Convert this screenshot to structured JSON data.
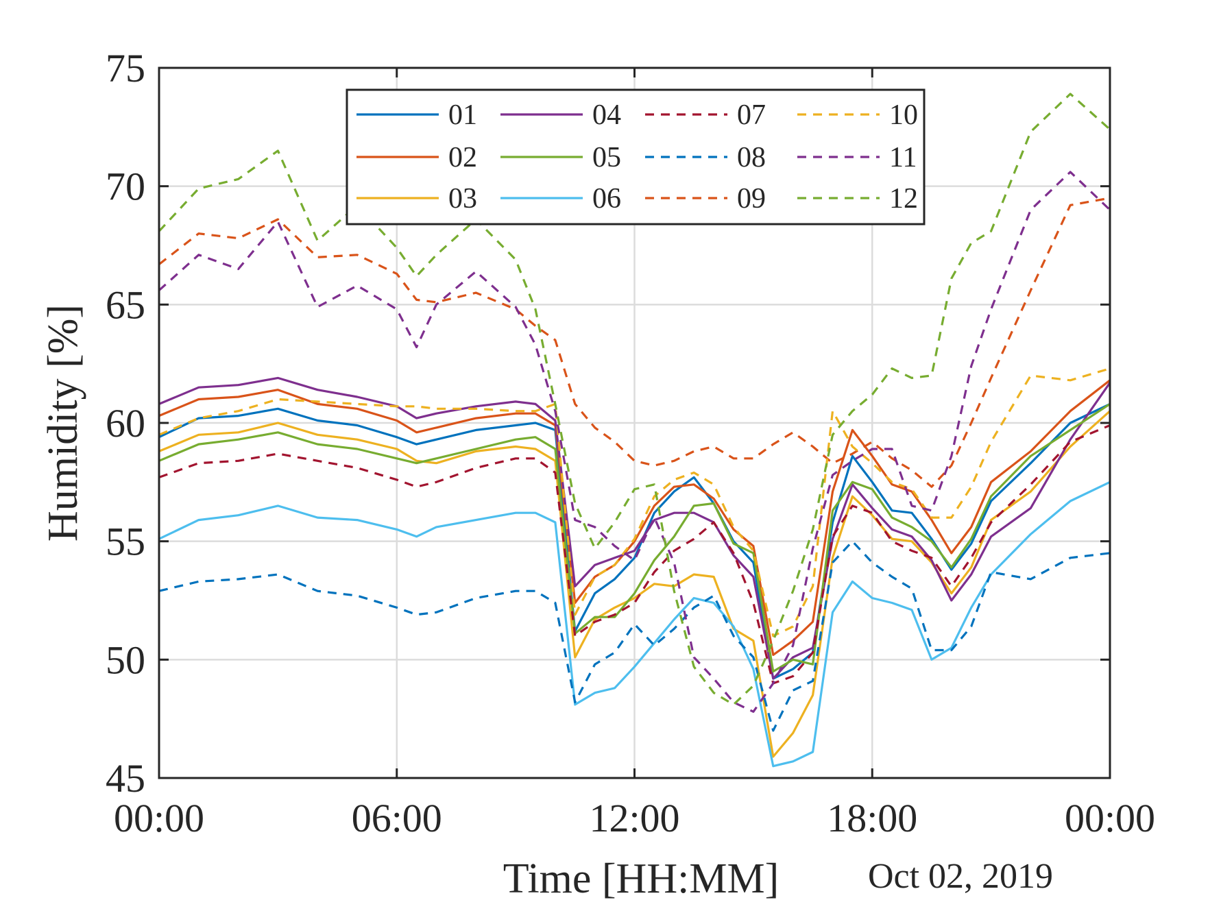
{
  "chart_data": {
    "type": "line",
    "xlabel": "Time [HH:MM]",
    "date_label": "Oct 02, 2019",
    "ylabel": "Humidity [%]",
    "xlim": [
      0,
      24
    ],
    "ylim": [
      45,
      75
    ],
    "xticks": [
      0,
      6,
      12,
      18,
      24
    ],
    "xtick_labels": [
      "00:00",
      "06:00",
      "12:00",
      "18:00",
      "00:00"
    ],
    "yticks": [
      45,
      50,
      55,
      60,
      65,
      70,
      75
    ],
    "ytick_labels": [
      "45",
      "50",
      "55",
      "60",
      "65",
      "70",
      "75"
    ],
    "grid": true,
    "legend_position": "top",
    "x_points": [
      0,
      1,
      2,
      3,
      4,
      5,
      6,
      6.5,
      7,
      8,
      9,
      9.5,
      10,
      10.5,
      11,
      11.5,
      12,
      12.5,
      13,
      13.5,
      14,
      14.5,
      15,
      15.5,
      16,
      16.5,
      17,
      17.5,
      18,
      18.5,
      19,
      19.5,
      20,
      20.5,
      21,
      22,
      23,
      24
    ],
    "series": [
      {
        "name": "01",
        "color": "#0072BD",
        "dash": false,
        "values": [
          59.4,
          60.2,
          60.3,
          60.6,
          60.1,
          59.9,
          59.4,
          59.1,
          59.3,
          59.7,
          59.9,
          60.0,
          59.7,
          51.2,
          52.8,
          53.4,
          54.3,
          56.2,
          57.1,
          57.7,
          56.6,
          55.0,
          54.1,
          49.2,
          49.6,
          50.3,
          55.8,
          58.6,
          57.5,
          56.3,
          56.2,
          55.1,
          53.8,
          54.9,
          56.7,
          58.3,
          60.0,
          60.8
        ]
      },
      {
        "name": "02",
        "color": "#D95319",
        "dash": false,
        "values": [
          60.3,
          61.0,
          61.1,
          61.4,
          60.8,
          60.6,
          60.1,
          59.6,
          59.8,
          60.2,
          60.4,
          60.4,
          59.9,
          52.4,
          53.5,
          54.0,
          55.0,
          56.5,
          57.3,
          57.4,
          56.8,
          55.5,
          54.8,
          50.2,
          50.8,
          51.6,
          57.1,
          59.7,
          58.6,
          57.4,
          57.1,
          55.9,
          54.5,
          55.6,
          57.5,
          58.8,
          60.5,
          61.8
        ]
      },
      {
        "name": "03",
        "color": "#EDB120",
        "dash": false,
        "values": [
          58.8,
          59.5,
          59.6,
          60.0,
          59.5,
          59.3,
          58.9,
          58.4,
          58.3,
          58.8,
          59.0,
          58.9,
          58.4,
          50.1,
          51.7,
          52.2,
          52.6,
          53.2,
          53.1,
          53.6,
          53.5,
          51.3,
          50.8,
          45.9,
          46.9,
          48.5,
          54.3,
          56.9,
          56.1,
          55.1,
          55.0,
          54.1,
          52.8,
          53.9,
          55.9,
          57.1,
          59.0,
          60.5
        ]
      },
      {
        "name": "04",
        "color": "#7E2F8E",
        "dash": false,
        "values": [
          60.8,
          61.5,
          61.6,
          61.9,
          61.4,
          61.1,
          60.7,
          60.2,
          60.4,
          60.7,
          60.9,
          60.8,
          60.1,
          53.1,
          54.0,
          54.3,
          54.6,
          55.9,
          56.2,
          56.2,
          55.8,
          54.4,
          53.5,
          49.2,
          50.1,
          50.5,
          55.1,
          57.4,
          56.4,
          55.5,
          55.2,
          54.2,
          52.5,
          53.6,
          55.2,
          56.4,
          59.3,
          61.7
        ]
      },
      {
        "name": "05",
        "color": "#77AC30",
        "dash": false,
        "values": [
          58.4,
          59.1,
          59.3,
          59.6,
          59.1,
          58.9,
          58.5,
          58.3,
          58.5,
          58.9,
          59.3,
          59.4,
          58.9,
          51.1,
          51.8,
          51.8,
          52.8,
          54.2,
          55.2,
          56.5,
          56.6,
          54.9,
          54.5,
          49.5,
          50.0,
          49.8,
          56.3,
          57.5,
          57.2,
          56.0,
          55.6,
          55.0,
          53.9,
          55.1,
          56.9,
          58.6,
          59.7,
          60.8
        ]
      },
      {
        "name": "06",
        "color": "#4DBEEE",
        "dash": false,
        "values": [
          55.1,
          55.9,
          56.1,
          56.5,
          56.0,
          55.9,
          55.5,
          55.2,
          55.6,
          55.9,
          56.2,
          56.2,
          55.8,
          48.1,
          48.6,
          48.8,
          49.7,
          50.7,
          51.7,
          52.6,
          52.4,
          51.4,
          49.6,
          45.5,
          45.7,
          46.1,
          52.0,
          53.3,
          52.6,
          52.4,
          52.1,
          50.0,
          50.5,
          52.2,
          53.6,
          55.3,
          56.7,
          57.5
        ]
      },
      {
        "name": "07",
        "color": "#A2142F",
        "dash": true,
        "values": [
          57.7,
          58.3,
          58.4,
          58.7,
          58.4,
          58.1,
          57.6,
          57.3,
          57.5,
          58.1,
          58.5,
          58.5,
          57.9,
          51.0,
          51.6,
          51.9,
          52.4,
          53.7,
          54.6,
          55.1,
          55.8,
          54.5,
          52.4,
          49.0,
          49.3,
          50.3,
          55.2,
          56.5,
          56.2,
          55.0,
          54.6,
          54.3,
          53.1,
          54.3,
          55.8,
          57.4,
          59.2,
          59.9
        ]
      },
      {
        "name": "08",
        "color": "#0072BD",
        "dash": true,
        "values": [
          52.9,
          53.3,
          53.4,
          53.6,
          52.9,
          52.7,
          52.2,
          51.9,
          52.0,
          52.6,
          52.9,
          52.9,
          52.4,
          48.2,
          49.8,
          50.3,
          51.5,
          50.6,
          51.3,
          52.2,
          52.7,
          51.0,
          50.1,
          47.0,
          48.7,
          49.1,
          54.1,
          55.0,
          54.1,
          53.5,
          53.0,
          50.4,
          50.4,
          51.4,
          53.7,
          53.4,
          54.3,
          54.5
        ]
      },
      {
        "name": "09",
        "color": "#D95319",
        "dash": true,
        "values": [
          66.7,
          68.0,
          67.8,
          68.6,
          67.0,
          67.1,
          66.3,
          65.2,
          65.1,
          65.5,
          64.8,
          64.1,
          63.5,
          60.8,
          59.8,
          59.2,
          58.4,
          58.2,
          58.4,
          58.8,
          59.0,
          58.5,
          58.5,
          59.1,
          59.6,
          59.0,
          58.3,
          58.7,
          59.2,
          58.5,
          58.0,
          57.3,
          58.2,
          60.0,
          61.9,
          65.6,
          69.2,
          69.5
        ]
      },
      {
        "name": "10",
        "color": "#EDB120",
        "dash": true,
        "values": [
          59.5,
          60.2,
          60.5,
          61.0,
          60.9,
          60.8,
          60.7,
          60.7,
          60.6,
          60.6,
          60.5,
          60.5,
          60.8,
          51.9,
          53.5,
          54.0,
          55.1,
          56.9,
          57.6,
          57.9,
          57.4,
          55.6,
          54.6,
          51.0,
          51.4,
          53.1,
          60.5,
          59.0,
          58.3,
          57.5,
          57.2,
          56.0,
          56.0,
          57.3,
          59.2,
          62.0,
          61.8,
          62.3
        ]
      },
      {
        "name": "11",
        "color": "#7E2F8E",
        "dash": true,
        "values": [
          65.6,
          67.1,
          66.5,
          68.5,
          64.9,
          65.8,
          64.8,
          63.2,
          65.0,
          66.4,
          64.9,
          63.3,
          60.5,
          55.9,
          55.6,
          54.8,
          54.2,
          56.0,
          54.1,
          50.1,
          49.2,
          48.2,
          47.8,
          49.0,
          50.6,
          54.7,
          57.8,
          58.4,
          58.9,
          58.9,
          56.5,
          56.3,
          58.6,
          62.4,
          64.8,
          69.0,
          70.6,
          69.0
        ]
      },
      {
        "name": "12",
        "color": "#77AC30",
        "dash": true,
        "values": [
          68.1,
          69.9,
          70.3,
          71.5,
          67.7,
          69.2,
          67.4,
          66.2,
          67.1,
          68.6,
          66.9,
          64.8,
          60.8,
          56.6,
          54.7,
          55.8,
          57.2,
          57.4,
          52.9,
          49.7,
          48.6,
          48.1,
          48.9,
          50.8,
          52.9,
          55.5,
          59.5,
          60.5,
          61.2,
          62.3,
          61.9,
          62.0,
          66.1,
          67.6,
          68.1,
          72.3,
          73.9,
          72.4
        ]
      }
    ]
  }
}
